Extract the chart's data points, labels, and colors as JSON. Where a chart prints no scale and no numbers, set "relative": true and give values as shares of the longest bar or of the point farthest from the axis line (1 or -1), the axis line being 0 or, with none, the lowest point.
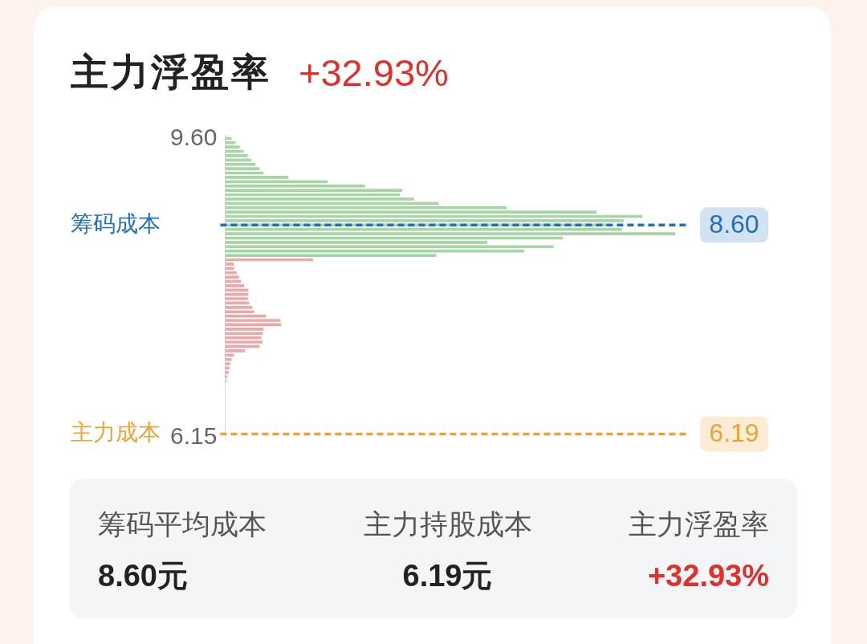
{
  "chart_data": {
    "type": "bar",
    "orientation": "horizontal",
    "relative": true,
    "title": "主力浮盈率",
    "subtitle": "+32.93%",
    "x": [
      9.6,
      9.55,
      9.5,
      9.45,
      9.4,
      9.35,
      9.3,
      9.25,
      9.2,
      9.15,
      9.1,
      9.05,
      9.0,
      8.95,
      8.9,
      8.85,
      8.8,
      8.75,
      8.7,
      8.65,
      8.6,
      8.55,
      8.5,
      8.45,
      8.4,
      8.35,
      8.3,
      8.25,
      8.2,
      8.15,
      8.1,
      8.05,
      8.0,
      7.95,
      7.9,
      7.85,
      7.8,
      7.75,
      7.7,
      7.65,
      7.6,
      7.55,
      7.5,
      7.45,
      7.4,
      7.35,
      7.3,
      7.25,
      7.2,
      7.15,
      7.1,
      7.05,
      7.0,
      6.95,
      6.9,
      6.85,
      6.8
    ],
    "values": [
      0.014,
      0.023,
      0.032,
      0.041,
      0.05,
      0.058,
      0.067,
      0.076,
      0.085,
      0.14,
      0.227,
      0.31,
      0.393,
      0.388,
      0.419,
      0.474,
      0.625,
      0.825,
      0.927,
      0.885,
      0.85,
      0.881,
      1,
      0.75,
      0.582,
      0.729,
      0.664,
      0.469,
      0.195,
      0.019,
      0.019,
      0.025,
      0.03,
      0.035,
      0.042,
      0.051,
      0.051,
      0.05,
      0.053,
      0.06,
      0.064,
      0.09,
      0.122,
      0.124,
      0.085,
      0.083,
      0.08,
      0.083,
      0.076,
      0.044,
      0.019,
      0.014,
      0.011,
      0.009,
      0.007,
      0.004,
      0.002
    ],
    "colors": [
      "#a8d5a6",
      "#a8d5a6",
      "#a8d5a6",
      "#a8d5a6",
      "#a8d5a6",
      "#a8d5a6",
      "#a8d5a6",
      "#a8d5a6",
      "#a8d5a6",
      "#a8d5a6",
      "#a8d5a6",
      "#a8d5a6",
      "#a8d5a6",
      "#a8d5a6",
      "#a8d5a6",
      "#a8d5a6",
      "#a8d5a6",
      "#a8d5a6",
      "#a8d5a6",
      "#a8d5a6",
      "#a8d5a6",
      "#a8d5a6",
      "#a8d5a6",
      "#a8d5a6",
      "#a8d5a6",
      "#a8d5a6",
      "#a8d5a6",
      "#a8d5a6",
      "#eba8a8",
      "#eba8a8",
      "#eba8a8",
      "#eba8a8",
      "#eba8a8",
      "#eba8a8",
      "#eba8a8",
      "#eba8a8",
      "#eba8a8",
      "#eba8a8",
      "#eba8a8",
      "#eba8a8",
      "#eba8a8",
      "#eba8a8",
      "#eba8a8",
      "#eba8a8",
      "#eba8a8",
      "#eba8a8",
      "#eba8a8",
      "#eba8a8",
      "#eba8a8",
      "#eba8a8",
      "#eba8a8",
      "#eba8a8",
      "#eba8a8",
      "#eba8a8",
      "#eba8a8",
      "#eba8a8",
      "#eba8a8"
    ],
    "ylim": [
      6.12,
      9.64
    ],
    "yticks": [
      {
        "value": 9.6,
        "label": "9.60"
      },
      6.15
    ],
    "ref_lines": [
      {
        "axis": "y",
        "value": 8.6,
        "label": "筹码成本",
        "color": "#1f6fbf",
        "line_style": "dashed"
      },
      {
        "axis": "y",
        "value": 6.19,
        "label": "主力成本",
        "color": "#eea233",
        "line_style": "dashed"
      }
    ],
    "annotations": [
      "8.60",
      "6.19",
      "筹码平均成本",
      "8.60元",
      "主力持股成本",
      "6.19元",
      "主力浮盈率",
      "+32.93%"
    ]
  }
}
